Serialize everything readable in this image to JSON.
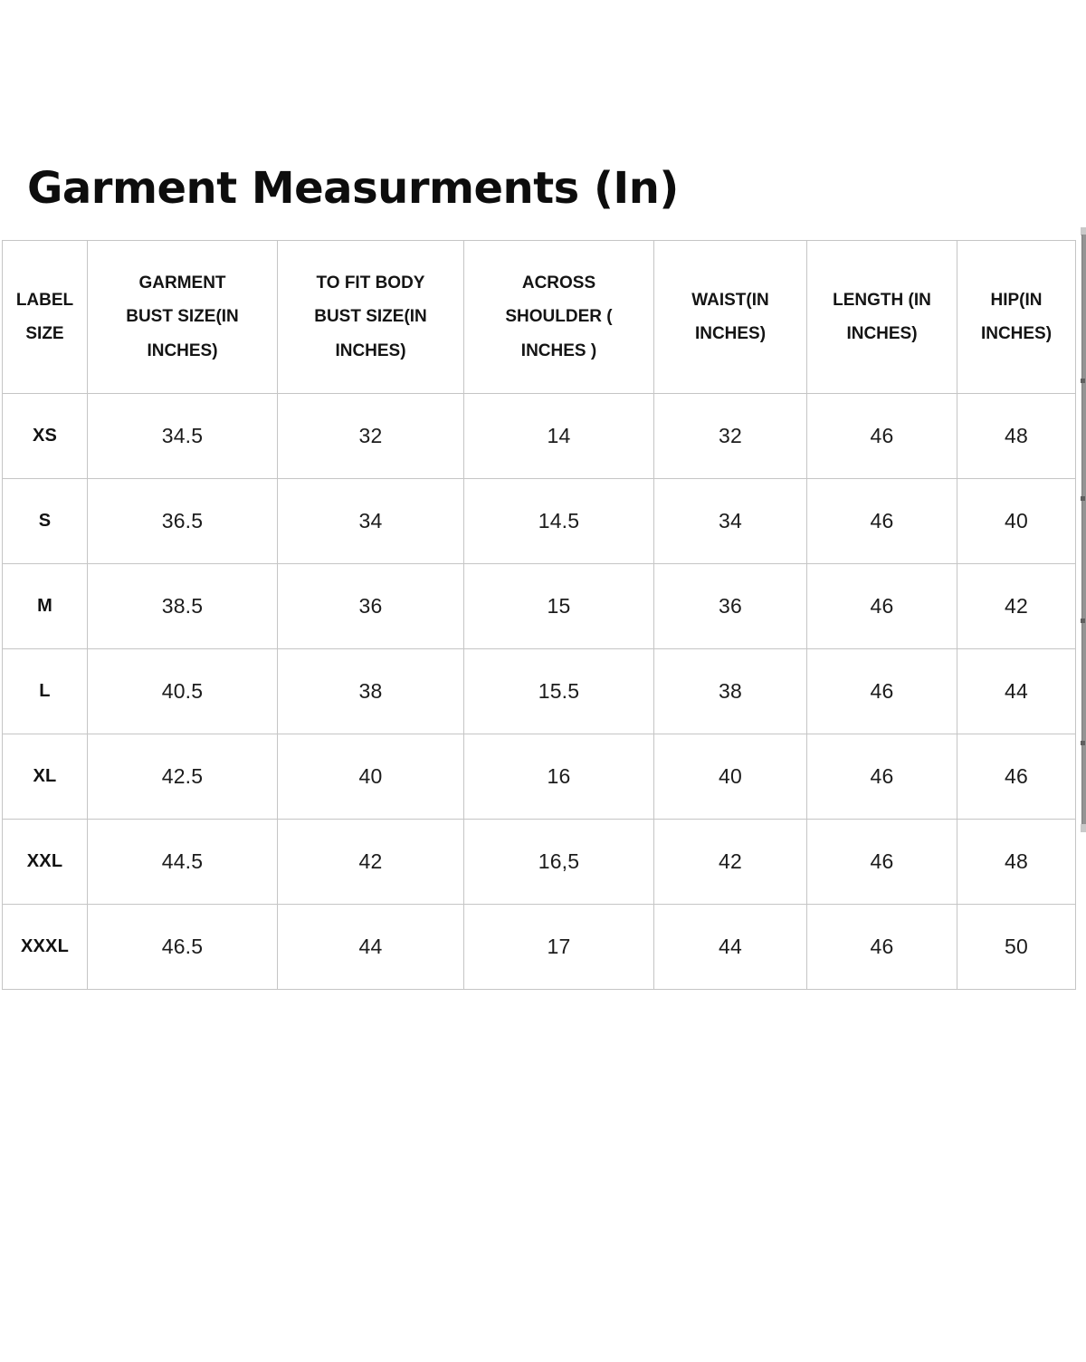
{
  "page": {
    "title": "Garment Measurments (In)"
  },
  "size_chart": {
    "columns": [
      "LABEL\nSIZE",
      "GARMENT\nBUST SIZE(IN\nINCHES)",
      "TO FIT BODY\nBUST SIZE(IN\nINCHES)",
      "ACROSS\nSHOULDER (\nINCHES )",
      "WAIST(IN\nINCHES)",
      "LENGTH (IN\nINCHES)",
      "HIP(IN\nINCHES)"
    ],
    "rows": [
      {
        "label": "XS",
        "values": [
          "34.5",
          "32",
          "14",
          "32",
          "46",
          "48"
        ]
      },
      {
        "label": "S",
        "values": [
          "36.5",
          "34",
          "14.5",
          "34",
          "46",
          "40"
        ]
      },
      {
        "label": "M",
        "values": [
          "38.5",
          "36",
          "15",
          "36",
          "46",
          "42"
        ]
      },
      {
        "label": "L",
        "values": [
          "40.5",
          "38",
          "15.5",
          "38",
          "46",
          "44"
        ]
      },
      {
        "label": "XL",
        "values": [
          "42.5",
          "40",
          "16",
          "40",
          "46",
          "46"
        ]
      },
      {
        "label": "XXL",
        "values": [
          "44.5",
          "42",
          "16,5",
          "42",
          "46",
          "48"
        ]
      },
      {
        "label": "XXXL",
        "values": [
          "46.5",
          "44",
          "17",
          "44",
          "46",
          "50"
        ]
      }
    ]
  },
  "colors": {
    "table_border": "#c5c5c5",
    "text": "#141414",
    "scrollbar_thumb": "#949494"
  }
}
